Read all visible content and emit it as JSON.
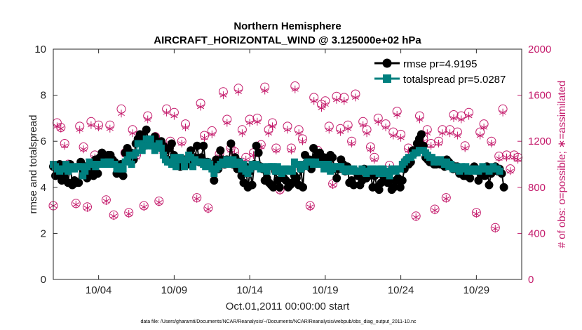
{
  "chart_data": {
    "type": "line",
    "title": "Northern Hemisphere",
    "subtitle": "AIRCRAFT_HORIZONTAL_WIND @ 3.125000e+02 hPa",
    "xlabel": "Oct.01,2011 00:00:00 start",
    "ylabel": "rmse and totalspread",
    "y2label": "# of obs: o=possible; ∗=assimilated",
    "footer": "data file: /Users/gharamti/Documents/NCAR/Reanalysis/~/Documents/NCAR/Reanalysis/webpub/obs_diag_output_2011-10.nc",
    "xlim": [
      1.0,
      32.0
    ],
    "ylim": [
      0,
      10
    ],
    "y2lim": [
      0,
      2000
    ],
    "xticks": [
      4,
      9,
      14,
      19,
      24,
      29
    ],
    "xtick_labels": [
      "10/04",
      "10/09",
      "10/14",
      "10/19",
      "10/24",
      "10/29"
    ],
    "yticks": [
      "0",
      "2",
      "4",
      "6",
      "8",
      "10"
    ],
    "y2ticks": [
      "0",
      "400",
      "800",
      "1200",
      "1600",
      "2000"
    ],
    "colors": {
      "rmse": "#000000",
      "spread": "#00807f",
      "obs": "#c41a6b"
    },
    "legend": [
      "rmse pr=4.9195",
      "totalspread pr=5.0287"
    ],
    "series": [
      {
        "name": "rmse",
        "values": [
          4.9,
          4.5,
          4.6,
          5.0,
          4.3,
          4.5,
          4.9,
          4.2,
          5.0,
          4.1,
          4.3,
          4.2,
          4.2,
          5.1,
          4.8,
          4.9,
          4.4,
          4.8,
          4.7,
          4.5,
          5.2,
          4.6,
          5.3,
          5.5,
          5.3,
          5.2,
          5.4,
          5.4,
          5.2,
          5.1,
          4.6,
          4.7,
          5.0,
          4.5,
          5.5,
          5.7,
          5.2,
          5.5,
          5.2,
          5.9,
          6.1,
          6.3,
          6.2,
          5.8,
          6.5,
          6.0,
          5.9,
          6.0,
          6.2,
          5.9,
          5.8,
          6.0,
          5.8,
          5.6,
          5.2,
          5.7,
          5.9,
          5.4,
          5.3,
          5.0,
          4.9,
          5.2,
          5.2,
          5.0,
          5.0,
          5.6,
          5.3,
          5.3,
          5.8,
          5.1,
          5.3,
          5.8,
          5.1,
          5.1,
          5.0,
          4.9,
          4.3,
          5.2,
          4.8,
          5.6,
          5.2,
          5.0,
          5.2,
          5.1,
          5.9,
          5.0,
          5.3,
          4.8,
          5.1,
          4.5,
          4.2,
          4.9,
          4.0,
          4.7,
          4.1,
          5.0,
          5.8,
          5.5,
          4.9,
          4.8,
          4.3,
          4.4,
          4.2,
          4.1,
          4.0,
          4.7,
          4.3,
          4.0,
          4.6,
          4.4,
          4.3,
          4.0,
          4.1,
          4.2,
          4.5,
          4.4,
          4.1,
          4.8,
          4.0,
          5.4,
          5.1,
          5.2,
          4.8,
          5.7,
          5.3,
          5.4,
          5.5,
          5.1,
          5.3,
          5.0,
          5.1,
          5.4,
          5.3,
          4.8,
          4.4,
          4.8,
          5.2,
          5.0,
          4.7,
          4.9,
          4.2,
          4.3,
          4.1,
          4.7,
          4.5,
          4.1,
          4.3,
          4.8,
          4.4,
          4.5,
          4.6,
          4.0,
          4.5,
          4.0,
          3.9,
          4.2,
          4.5,
          4.3,
          4.2,
          4.3,
          3.9,
          4.0,
          4.3,
          4.4,
          4.0,
          4.3,
          4.8,
          5.2,
          5.0,
          5.1,
          5.6,
          5.5,
          5.9,
          6.1,
          6.3,
          5.8,
          5.3,
          5.2,
          5.1,
          5.2,
          5.0,
          5.0,
          5.1,
          5.0,
          5.0,
          4.9,
          5.2,
          5.1,
          5.0,
          4.8,
          4.9,
          4.9,
          4.6,
          4.6,
          4.5,
          4.5,
          4.7,
          4.4,
          4.8,
          4.9,
          4.8,
          4.3,
          4.6,
          4.7,
          4.5,
          4.9,
          4.1,
          4.6,
          4.8,
          4.9,
          4.7,
          4.8,
          4.6,
          4.0
        ],
        "x_start": 1.0,
        "x_step": 0.14
      },
      {
        "name": "totalspread",
        "values": [
          5.0,
          4.9,
          4.8,
          4.7,
          4.8,
          4.8,
          5.0,
          4.7,
          4.9,
          4.8,
          4.8,
          4.9,
          4.9,
          4.9,
          4.5,
          4.7,
          4.9,
          5.1,
          5.0,
          5.0,
          4.9,
          5.0,
          5.0,
          5.0,
          5.1,
          5.0,
          5.1,
          5.1,
          5.0,
          5.0,
          4.8,
          4.9,
          4.8,
          4.8,
          5.1,
          5.2,
          5.4,
          5.0,
          5.4,
          5.5,
          5.9,
          5.9,
          5.6,
          5.8,
          6.1,
          5.8,
          6.1,
          5.8,
          5.6,
          5.7,
          5.9,
          5.7,
          5.4,
          5.2,
          5.1,
          5.1,
          5.0,
          5.3,
          4.9,
          5.2,
          5.3,
          5.2,
          4.9,
          5.2,
          5.4,
          5.3,
          4.9,
          5.2,
          5.1,
          5.1,
          5.1,
          5.0,
          4.9,
          5.1,
          5.0,
          4.8,
          4.6,
          4.8,
          4.9,
          5.0,
          5.1,
          5.0,
          5.2,
          5.0,
          5.1,
          5.2,
          5.0,
          5.0,
          5.1,
          4.8,
          5.0,
          4.7,
          4.6,
          4.8,
          5.0,
          4.9,
          5.0,
          4.9,
          4.8,
          4.9,
          4.8,
          4.7,
          4.9,
          4.9,
          4.9,
          4.7,
          4.9,
          4.7,
          4.6,
          4.8,
          4.8,
          4.7,
          4.8,
          4.7,
          5.1,
          5.0,
          5.0,
          4.8,
          5.0,
          4.9,
          5.1,
          5.1,
          5.1,
          5.0,
          5.1,
          5.0,
          5.0,
          5.0,
          4.8,
          5.0,
          5.0,
          4.7,
          4.8,
          4.9,
          4.9,
          4.9,
          4.9,
          4.8,
          4.7,
          4.8,
          4.7,
          4.8,
          4.8,
          4.7,
          4.7,
          4.7,
          4.8,
          4.7,
          4.6,
          4.7,
          4.8,
          4.8,
          4.7,
          4.8,
          4.6,
          4.8,
          4.8,
          4.6,
          4.7,
          4.5,
          4.8,
          4.8,
          4.7,
          4.8,
          4.8,
          5.0,
          5.1,
          5.2,
          5.3,
          5.3,
          5.4,
          5.5,
          5.5,
          5.6,
          5.6,
          5.6,
          5.5,
          5.4,
          5.3,
          5.3,
          5.1,
          5.2,
          5.1,
          5.2,
          5.1,
          5.0,
          5.1,
          4.9,
          5.0,
          4.8,
          4.9,
          4.8,
          4.7,
          4.9,
          4.8,
          4.9,
          4.7,
          4.8,
          4.7,
          4.8,
          4.8,
          4.7,
          4.8,
          4.9,
          4.8,
          4.8,
          4.7,
          4.8,
          4.9,
          4.8,
          4.8,
          4.7
        ],
        "x_start": 1.0,
        "x_step": 0.14
      },
      {
        "name": "obs_possible",
        "axis": "right",
        "x": [
          1.0,
          1.25,
          1.5,
          1.75,
          2.0,
          2.5,
          2.75,
          3.0,
          3.25,
          3.5,
          3.75,
          4.0,
          4.5,
          4.75,
          5.0,
          5.5,
          5.75,
          6.0,
          6.25,
          6.5,
          7.0,
          7.25,
          7.5,
          7.75,
          8.0,
          8.25,
          8.5,
          8.75,
          9.0,
          9.25,
          9.5,
          9.75,
          10.0,
          10.5,
          10.75,
          11.0,
          11.25,
          11.5,
          12.0,
          12.25,
          12.5,
          12.75,
          13.0,
          13.25,
          13.5,
          13.75,
          14.0,
          14.25,
          14.5,
          14.75,
          15.0,
          15.25,
          15.5,
          15.75,
          16.0,
          16.5,
          16.75,
          17.0,
          17.25,
          17.5,
          18.0,
          18.25,
          18.5,
          18.75,
          19.0,
          19.25,
          19.5,
          19.75,
          20.0,
          20.25,
          20.5,
          20.75,
          21.0,
          21.5,
          21.75,
          22.0,
          22.25,
          22.5,
          23.0,
          23.25,
          23.5,
          23.75,
          24.0,
          24.25,
          24.5,
          24.75,
          25.0,
          25.25,
          25.5,
          25.75,
          26.0,
          26.25,
          26.5,
          26.75,
          27.0,
          27.25,
          27.5,
          27.75,
          28.0,
          28.25,
          28.5,
          29.0,
          29.25,
          29.5,
          30.0,
          30.25,
          30.5,
          30.75,
          31.0,
          31.25,
          31.5,
          31.75
        ],
        "values": [
          640,
          1360,
          1320,
          1180,
          1000,
          660,
          1330,
          1150,
          630,
          1370,
          1080,
          1340,
          690,
          1340,
          560,
          1480,
          1100,
          580,
          1300,
          1080,
          640,
          1420,
          1210,
          1240,
          680,
          1130,
          1480,
          1200,
          1450,
          1000,
          1200,
          1350,
          1040,
          710,
          1530,
          1250,
          620,
          1290,
          1090,
          1630,
          1390,
          1140,
          1110,
          1660,
          1300,
          1060,
          1390,
          1100,
          1400,
          1170,
          1670,
          1300,
          1360,
          1140,
          780,
          1330,
          1140,
          1680,
          1300,
          1220,
          640,
          1580,
          1120,
          1520,
          1550,
          1330,
          830,
          1590,
          1310,
          1580,
          1340,
          1200,
          1610,
          1370,
          1300,
          1150,
          1060,
          1400,
          1350,
          990,
          1280,
          1460,
          1260,
          1000,
          1140,
          1110,
          550,
          1420,
          1220,
          1300,
          1180,
          610,
          1200,
          1300,
          710,
          1300,
          1430,
          1280,
          1420,
          1160,
          1450,
          580,
          1280,
          1350,
          1200,
          450,
          1070,
          1480,
          1080,
          960,
          1080,
          1060
        ],
        "marker": "circle"
      },
      {
        "name": "obs_assimilated",
        "axis": "right",
        "x": [
          1.0,
          1.25,
          1.5,
          1.75,
          2.0,
          2.5,
          2.75,
          3.0,
          3.25,
          3.5,
          3.75,
          4.0,
          4.5,
          4.75,
          5.0,
          5.5,
          5.75,
          6.0,
          6.25,
          6.5,
          7.0,
          7.25,
          7.5,
          7.75,
          8.0,
          8.25,
          8.5,
          8.75,
          9.0,
          9.25,
          9.5,
          9.75,
          10.0,
          10.5,
          10.75,
          11.0,
          11.25,
          11.5,
          12.0,
          12.25,
          12.5,
          12.75,
          13.0,
          13.25,
          13.5,
          13.75,
          14.0,
          14.25,
          14.5,
          14.75,
          15.0,
          15.25,
          15.5,
          15.75,
          16.0,
          16.5,
          16.75,
          17.0,
          17.25,
          17.5,
          18.0,
          18.25,
          18.5,
          18.75,
          19.0,
          19.25,
          19.5,
          19.75,
          20.0,
          20.25,
          20.5,
          20.75,
          21.0,
          21.5,
          21.75,
          22.0,
          22.25,
          22.5,
          23.0,
          23.25,
          23.5,
          23.75,
          24.0,
          24.25,
          24.5,
          24.75,
          25.0,
          25.25,
          25.5,
          25.75,
          26.0,
          26.25,
          26.5,
          26.75,
          27.0,
          27.25,
          27.5,
          27.75,
          28.0,
          28.25,
          28.5,
          29.0,
          29.25,
          29.5,
          30.0,
          30.25,
          30.5,
          30.75,
          31.0,
          31.25,
          31.5,
          31.75
        ],
        "values": [
          640,
          1330,
          1310,
          1160,
          980,
          650,
          1300,
          1130,
          620,
          1340,
          1060,
          1320,
          680,
          1310,
          550,
          1440,
          1080,
          570,
          1270,
          1060,
          630,
          1390,
          1190,
          1220,
          670,
          1110,
          1450,
          1180,
          1420,
          990,
          1180,
          1320,
          1020,
          700,
          1500,
          1230,
          610,
          1260,
          1070,
          1600,
          1360,
          1120,
          1090,
          1630,
          1270,
          1040,
          1360,
          1080,
          1370,
          1150,
          1640,
          1270,
          1330,
          1120,
          770,
          1300,
          1120,
          1650,
          1270,
          1200,
          630,
          1550,
          1100,
          1490,
          1520,
          1300,
          820,
          1560,
          1280,
          1550,
          1310,
          1180,
          1580,
          1340,
          1270,
          1130,
          1040,
          1370,
          1320,
          970,
          1250,
          1430,
          1230,
          980,
          1120,
          1090,
          540,
          1390,
          1200,
          1270,
          1160,
          600,
          1180,
          1270,
          700,
          1270,
          1400,
          1250,
          1390,
          1140,
          1420,
          570,
          1250,
          1320,
          1180,
          440,
          1050,
          1450,
          1060,
          940,
          1060,
          1040
        ],
        "marker": "asterisk"
      }
    ]
  }
}
